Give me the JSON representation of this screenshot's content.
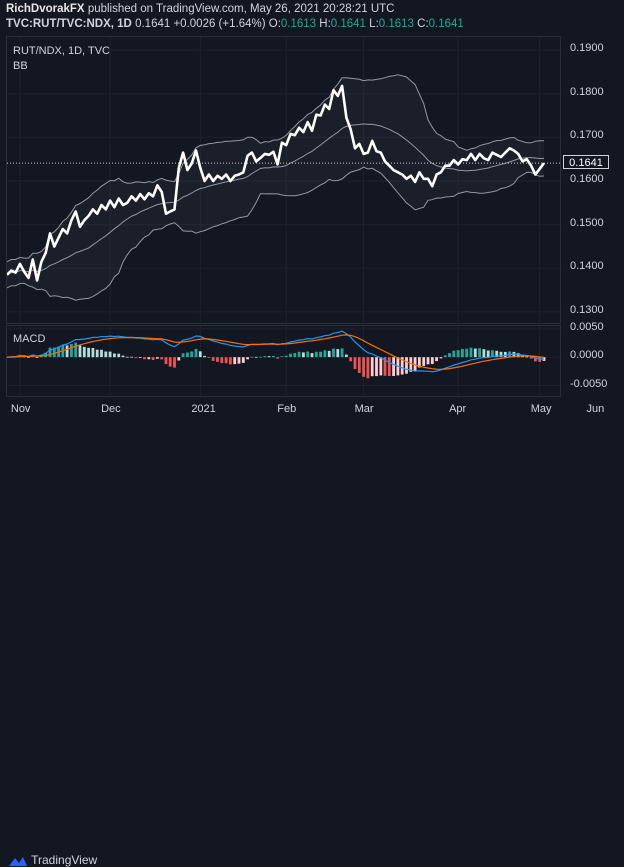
{
  "header": {
    "publisher": "RichDvorakFX",
    "published_text": "published on TradingView.com, May 26, 2021 20:28:21 UTC",
    "symbol": "TVC:RUT/TVC:NDX, 1D",
    "last": "0.1641",
    "change": "+0.0026 (+1.64%)",
    "o_label": "O:",
    "o_val": "0.1613",
    "h_label": "H:",
    "h_val": "0.1641",
    "l_label": "L:",
    "l_val": "0.1613",
    "c_label": "C:",
    "c_val": "0.1641"
  },
  "main_pane": {
    "legend": "RUT/NDX, 1D, TVC",
    "indicator": "BB",
    "current_price_label": "0.1641"
  },
  "macd_pane": {
    "legend": "MACD"
  },
  "footer": {
    "brand": "TradingView"
  },
  "colors": {
    "background": "#131722",
    "price": "#ffffff",
    "band": "#9598a1",
    "macd": "#2196f3",
    "signal": "#ff6d00",
    "hist_pos": "#26a69a",
    "hist_neg": "#ef5350"
  },
  "chart_data": [
    {
      "type": "line",
      "title": "RUT/NDX, 1D, TVC",
      "x_tick_labels": [
        "Nov",
        "Dec",
        "2021",
        "Feb",
        "Mar",
        "Apr",
        "May",
        "Jun"
      ],
      "y_tick_labels": [
        "0.1300",
        "0.1400",
        "0.1500",
        "0.1600",
        "0.1700",
        "0.1800",
        "0.1900"
      ],
      "ylim": [
        0.127,
        0.193
      ],
      "series": [
        {
          "values": [
            0.1385,
            0.1395,
            0.139,
            0.141,
            0.1392,
            0.1378,
            0.142,
            0.1372,
            0.1415,
            0.1435,
            0.148,
            0.145,
            0.147,
            0.149,
            0.148,
            0.151,
            0.153,
            0.1495,
            0.151,
            0.152,
            0.1535,
            0.1525,
            0.1545,
            0.1535,
            0.1555,
            0.154,
            0.156,
            0.1545,
            0.155,
            0.1565,
            0.1555,
            0.157,
            0.1558,
            0.1572,
            0.1565,
            0.159,
            0.1575,
            0.1525,
            0.153,
            0.1535,
            0.163,
            0.1665,
            0.1625,
            0.164,
            0.167,
            0.163,
            0.16,
            0.1615,
            0.16,
            0.1612,
            0.1605,
            0.1615,
            0.16,
            0.1612,
            0.1615,
            0.162,
            0.1658,
            0.1665,
            0.1645,
            0.1653,
            0.1662,
            0.166,
            0.1667,
            0.1638,
            0.1688,
            0.1682,
            0.1708,
            0.1705,
            0.1722,
            0.1712,
            0.1735,
            0.1715,
            0.1752,
            0.175,
            0.1775,
            0.1765,
            0.1808,
            0.1795,
            0.1818,
            0.1745,
            0.1718,
            0.1675,
            0.1685,
            0.1662,
            0.1665,
            0.1692,
            0.1668,
            0.1665,
            0.1645,
            0.1635,
            0.1625,
            0.162,
            0.1615,
            0.1605,
            0.1612,
            0.1598,
            0.162,
            0.1605,
            0.1605,
            0.1588,
            0.1615,
            0.162,
            0.1635,
            0.1635,
            0.1648,
            0.1638,
            0.165,
            0.1648,
            0.1662,
            0.1648,
            0.1662,
            0.1652,
            0.1648,
            0.1665,
            0.166,
            0.1655,
            0.1665,
            0.1675,
            0.167,
            0.1662,
            0.1645,
            0.165,
            0.1635,
            0.1615,
            0.1628,
            0.1641
          ]
        }
      ]
    },
    {
      "type": "line",
      "title": "MACD",
      "y_tick_labels": [
        "0.0050",
        "0.0000",
        "-0.0050"
      ],
      "ylim": [
        -0.0072,
        0.0055
      ]
    }
  ]
}
